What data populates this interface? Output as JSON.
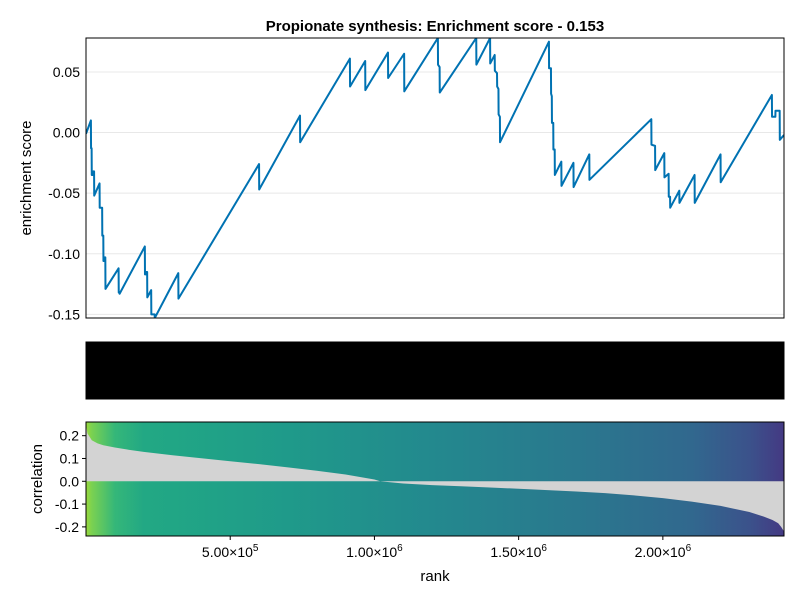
{
  "chart_data": [
    {
      "type": "line",
      "title": "Propionate synthesis: Enrichment score - 0.153",
      "ylabel": "enrichment score",
      "xlim": [
        1,
        2420000
      ],
      "ylim": [
        -0.153,
        0.078
      ],
      "grid": true,
      "yticks": [
        {
          "value": 0.05,
          "label": "0.05"
        },
        {
          "value": 0.0,
          "label": "0.00"
        },
        {
          "value": -0.05,
          "label": "-0.05"
        },
        {
          "value": -0.1,
          "label": "-0.10"
        },
        {
          "value": -0.15,
          "label": "-0.15"
        }
      ],
      "series": [
        {
          "color": "#0072b2",
          "x": [
            1,
            17000,
            17500,
            19500,
            20000,
            24000,
            24500,
            28000,
            28500,
            47000,
            47500,
            56000,
            56500,
            60000,
            60500,
            63000,
            63500,
            67000,
            67500,
            113000,
            113500,
            116000,
            116500,
            204000,
            204500,
            208000,
            208500,
            212000,
            212500,
            226000,
            226500,
            238000,
            238500,
            320000,
            320500,
            600000,
            600500,
            742000,
            742500,
            915000,
            915500,
            968000,
            968500,
            1047000,
            1047500,
            1103000,
            1103500,
            1220000,
            1220500,
            1226000,
            1226500,
            1353000,
            1353500,
            1401000,
            1401500,
            1417000,
            1417500,
            1425000,
            1425500,
            1430000,
            1430500,
            1435000,
            1435500,
            1605000,
            1605500,
            1612000,
            1612500,
            1615000,
            1615500,
            1620000,
            1620500,
            1625000,
            1625500,
            1648000,
            1648500,
            1690000,
            1690500,
            1745000,
            1745500,
            1960000,
            1960500,
            1973000,
            1973500,
            2005000,
            2005500,
            2020000,
            2020500,
            2025000,
            2025500,
            2057000,
            2057500,
            2110000,
            2110500,
            2200000,
            2200500,
            2378000,
            2378500,
            2390000,
            2390500,
            2405000,
            2405500,
            2420000
          ],
          "y": [
            -0.001,
            0.01,
            -0.013,
            -0.013,
            -0.035,
            -0.035,
            -0.032,
            -0.032,
            -0.052,
            -0.042,
            -0.062,
            -0.062,
            -0.085,
            -0.085,
            -0.106,
            -0.106,
            -0.103,
            -0.103,
            -0.129,
            -0.112,
            -0.132,
            -0.132,
            -0.133,
            -0.094,
            -0.117,
            -0.117,
            -0.115,
            -0.115,
            -0.136,
            -0.13,
            -0.15,
            -0.15,
            -0.153,
            -0.116,
            -0.137,
            -0.026,
            -0.047,
            0.014,
            -0.008,
            0.061,
            0.038,
            0.059,
            0.035,
            0.066,
            0.045,
            0.065,
            0.034,
            0.078,
            0.056,
            0.054,
            0.033,
            0.078,
            0.056,
            0.078,
            0.057,
            0.064,
            0.051,
            0.049,
            0.038,
            0.036,
            0.015,
            0.013,
            -0.008,
            0.075,
            0.053,
            0.053,
            0.032,
            0.03,
            0.008,
            0.008,
            -0.014,
            -0.014,
            -0.035,
            -0.024,
            -0.044,
            -0.025,
            -0.045,
            -0.018,
            -0.039,
            0.011,
            -0.01,
            -0.011,
            -0.031,
            -0.017,
            -0.037,
            -0.034,
            -0.053,
            -0.053,
            -0.062,
            -0.048,
            -0.058,
            -0.035,
            -0.058,
            -0.018,
            -0.041,
            0.031,
            0.013,
            0.013,
            0.018,
            0.018,
            -0.006,
            -0.002
          ]
        }
      ]
    },
    {
      "type": "barcode",
      "color": "#000000",
      "description_values": "gene set member ranks",
      "marks": [
        17000,
        19500,
        24000,
        28000,
        47000,
        56000,
        60000,
        63000,
        67000,
        113000,
        116000,
        204000,
        208000,
        212000,
        226000,
        238000,
        320000,
        600000,
        742000,
        915000,
        968000,
        1047000,
        1103000,
        1220000,
        1226000,
        1353000,
        1401000,
        1417000,
        1425000,
        1430000,
        1435000,
        1605000,
        1612000,
        1615000,
        1620000,
        1625000,
        1648000,
        1690000,
        1745000,
        1960000,
        1973000,
        2005000,
        2020000,
        2025000,
        2057000,
        2110000,
        2200000,
        2378000,
        2390000,
        2405000
      ]
    },
    {
      "type": "area",
      "xlabel": "rank",
      "ylabel": "correlation",
      "xlim": [
        1,
        2420000
      ],
      "ylim": [
        -0.24,
        0.26
      ],
      "fill_color": "#d3d3d3",
      "xticks": [
        {
          "value": 500000,
          "label": "5.00×10",
          "sup": "5"
        },
        {
          "value": 1000000,
          "label": "1.00×10",
          "sup": "6"
        },
        {
          "value": 1500000,
          "label": "1.50×10",
          "sup": "6"
        },
        {
          "value": 2000000,
          "label": "2.00×10",
          "sup": "6"
        }
      ],
      "yticks": [
        {
          "value": 0.2,
          "label": "0.2"
        },
        {
          "value": 0.1,
          "label": "0.1"
        },
        {
          "value": 0.0,
          "label": "0.0"
        },
        {
          "value": -0.1,
          "label": "-0.1"
        },
        {
          "value": -0.2,
          "label": "-0.2"
        }
      ],
      "x": [
        1,
        5000,
        20000,
        40000,
        60000,
        100000,
        150000,
        200000,
        300000,
        400000,
        500000,
        600000,
        700000,
        800000,
        900000,
        1000000,
        1020000,
        1100000,
        1200000,
        1300000,
        1400000,
        1500000,
        1600000,
        1700000,
        1800000,
        1900000,
        2000000,
        2100000,
        2200000,
        2300000,
        2350000,
        2380000,
        2400000,
        2410000,
        2420000
      ],
      "y": [
        0.25,
        0.21,
        0.18,
        0.166,
        0.158,
        0.148,
        0.138,
        0.129,
        0.114,
        0.101,
        0.088,
        0.075,
        0.061,
        0.046,
        0.03,
        0.008,
        0.0,
        -0.01,
        -0.017,
        -0.022,
        -0.027,
        -0.033,
        -0.039,
        -0.045,
        -0.052,
        -0.062,
        -0.074,
        -0.089,
        -0.108,
        -0.135,
        -0.155,
        -0.17,
        -0.184,
        -0.2,
        -0.22
      ],
      "gradient": {
        "stops": [
          {
            "x": 1,
            "color": "#9bd93c"
          },
          {
            "x": 20000,
            "color": "#7ad151"
          },
          {
            "x": 100000,
            "color": "#35b779"
          },
          {
            "x": 200000,
            "color": "#22a884"
          },
          {
            "x": 300000,
            "color": "#21a685"
          },
          {
            "x": 700000,
            "color": "#1f9a8a"
          },
          {
            "x": 1200000,
            "color": "#23898e"
          },
          {
            "x": 1700000,
            "color": "#2a788e"
          },
          {
            "x": 2100000,
            "color": "#31688e"
          },
          {
            "x": 2300000,
            "color": "#3b528b"
          },
          {
            "x": 2420000,
            "color": "#443983"
          }
        ]
      }
    }
  ]
}
